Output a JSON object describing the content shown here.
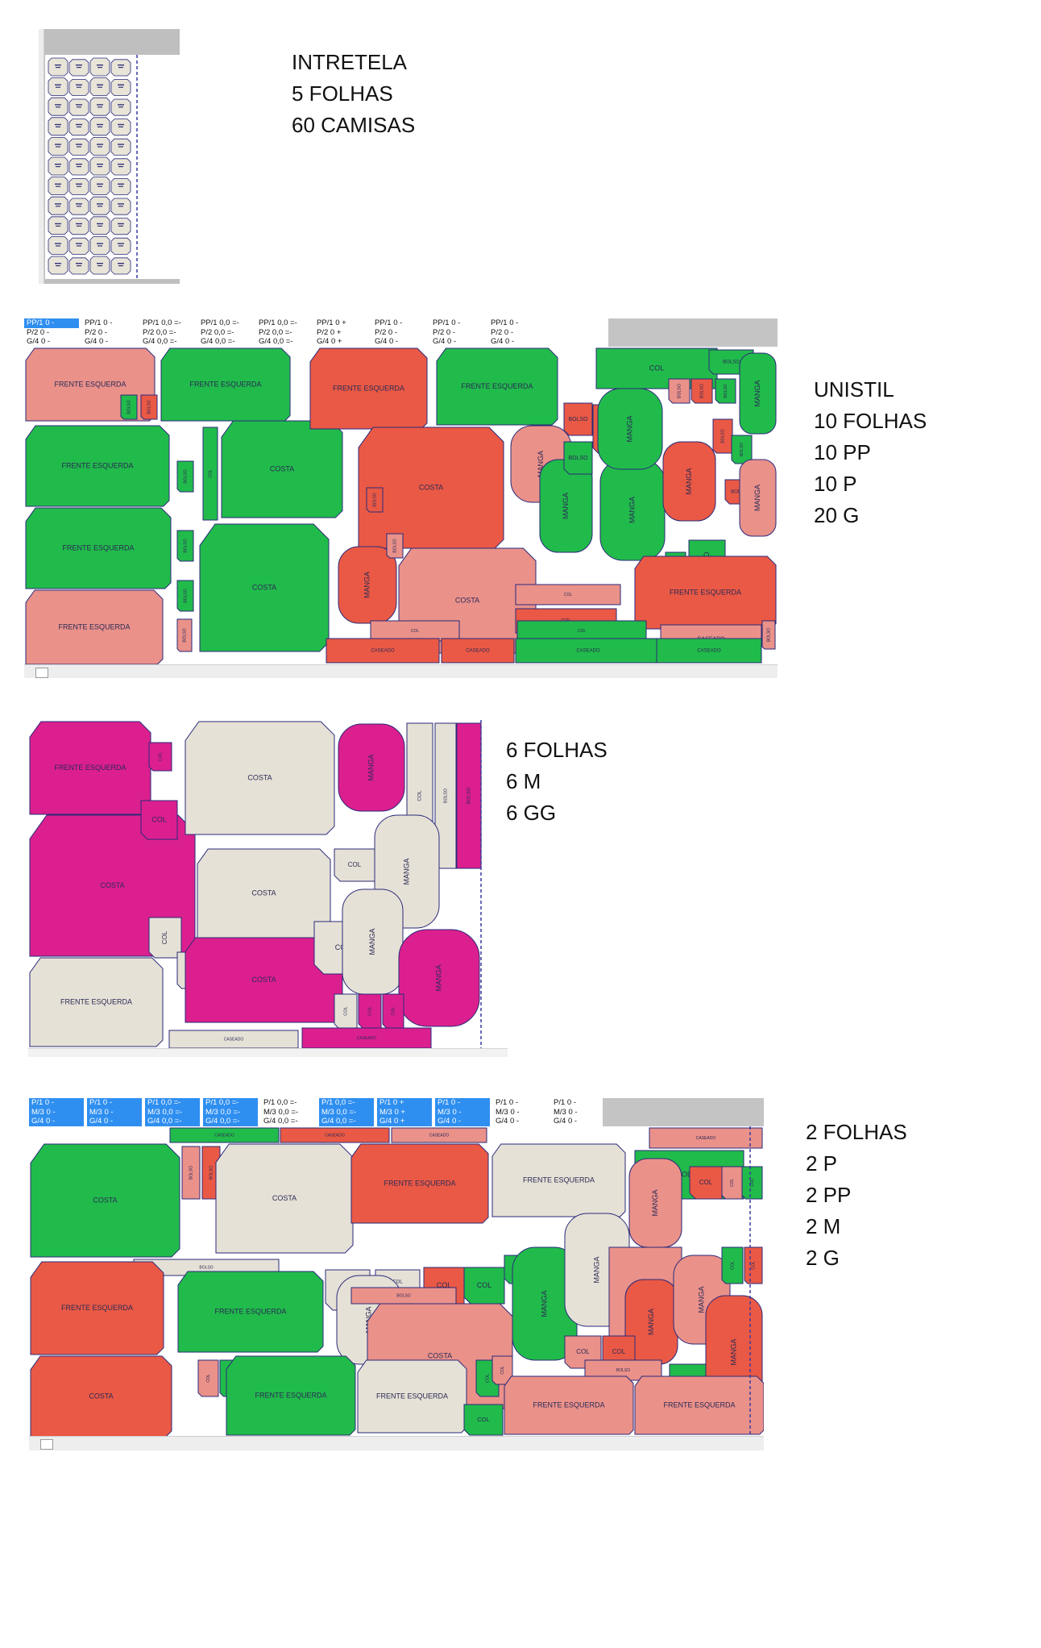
{
  "colors": {
    "green": "#21bb4b",
    "red": "#ea5945",
    "salmon": "#ea918a",
    "magenta": "#dc1f8e",
    "beige": "#e6e1d6",
    "intertela": "#e8e4d8",
    "outline": "#2a2a7a",
    "header_gray": "#c4c4c4",
    "header_selected": "#2f8ff0"
  },
  "markers": [
    {
      "notes": [
        "INTRETELA",
        "5 FOLHAS",
        "60 CAMISAS"
      ],
      "piece_labels": []
    },
    {
      "notes": [
        "UNISTIL",
        "10 FOLHAS",
        "10 PP",
        "10 P",
        "20 G"
      ],
      "header_rows": [
        [
          "PP/1 0  -",
          "PP/1 0  -",
          "PP/1 0,0 =-",
          "PP/1 0,0 =-",
          "PP/1 0,0 =-",
          "PP/1 0  +",
          "PP/1 0  -",
          "PP/1 0  -",
          "PP/1 0  -"
        ],
        [
          "P/2 0  -",
          "P/2 0  -",
          "P/2 0,0 =-",
          "P/2 0,0 =-",
          "P/2 0,0 =-",
          "P/2 0  +",
          "P/2 0  -",
          "P/2 0  -",
          "P/2 0  -"
        ],
        [
          "G/4 0  -",
          "G/4 0  -",
          "G/4 0,0 =-",
          "G/4 0,0 =-",
          "G/4 0,0 =-",
          "G/4 0  +",
          "G/4 0  -",
          "G/4 0  -",
          "G/4 0  -"
        ]
      ],
      "piece_labels": [
        "FRENTE ESQUERDA",
        "COSTA",
        "MANGA",
        "COL",
        "BOLSO",
        "CASEADO"
      ]
    },
    {
      "notes": [
        "6 FOLHAS",
        "6 M",
        "6 GG"
      ],
      "piece_labels": [
        "FRENTE ESQUERDA",
        "COSTA",
        "MANGA",
        "BOLSO",
        "COL",
        "CASEADO"
      ]
    },
    {
      "notes": [
        "2 FOLHAS",
        "2 P",
        "2 PP",
        "2 M",
        "2 G"
      ],
      "header_rows": [
        [
          "P/1 0  -",
          "P/1 0  -",
          "P/1 0,0 =-",
          "P/1 0,0 =-",
          "P/1 0,0 =-",
          "P/1 0,0 =-",
          "P/1 0  +",
          "P/1 0  -",
          "P/1 0  -",
          "P/1 0  -"
        ],
        [
          "M/3 0  -",
          "M/3 0  -",
          "M/3 0,0 =-",
          "M/3 0,0 =-",
          "M/3 0,0 =-",
          "M/3 0,0 =-",
          "M/3 0  +",
          "M/3 0  -",
          "M/3 0  -",
          "M/3 0  -"
        ],
        [
          "G/4 0  -",
          "G/4 0  -",
          "G/4 0,0 =-",
          "G/4 0,0 =-",
          "G/4 0,0 =-",
          "G/4 0,0 =-",
          "G/4 0  +",
          "G/4 0  -",
          "G/4 0  -",
          "G/4 0  -"
        ]
      ],
      "piece_labels": [
        "FRENTE ESQUERDA",
        "COSTA",
        "MANGA",
        "BOLSO",
        "COL",
        "CASEADO"
      ]
    }
  ]
}
